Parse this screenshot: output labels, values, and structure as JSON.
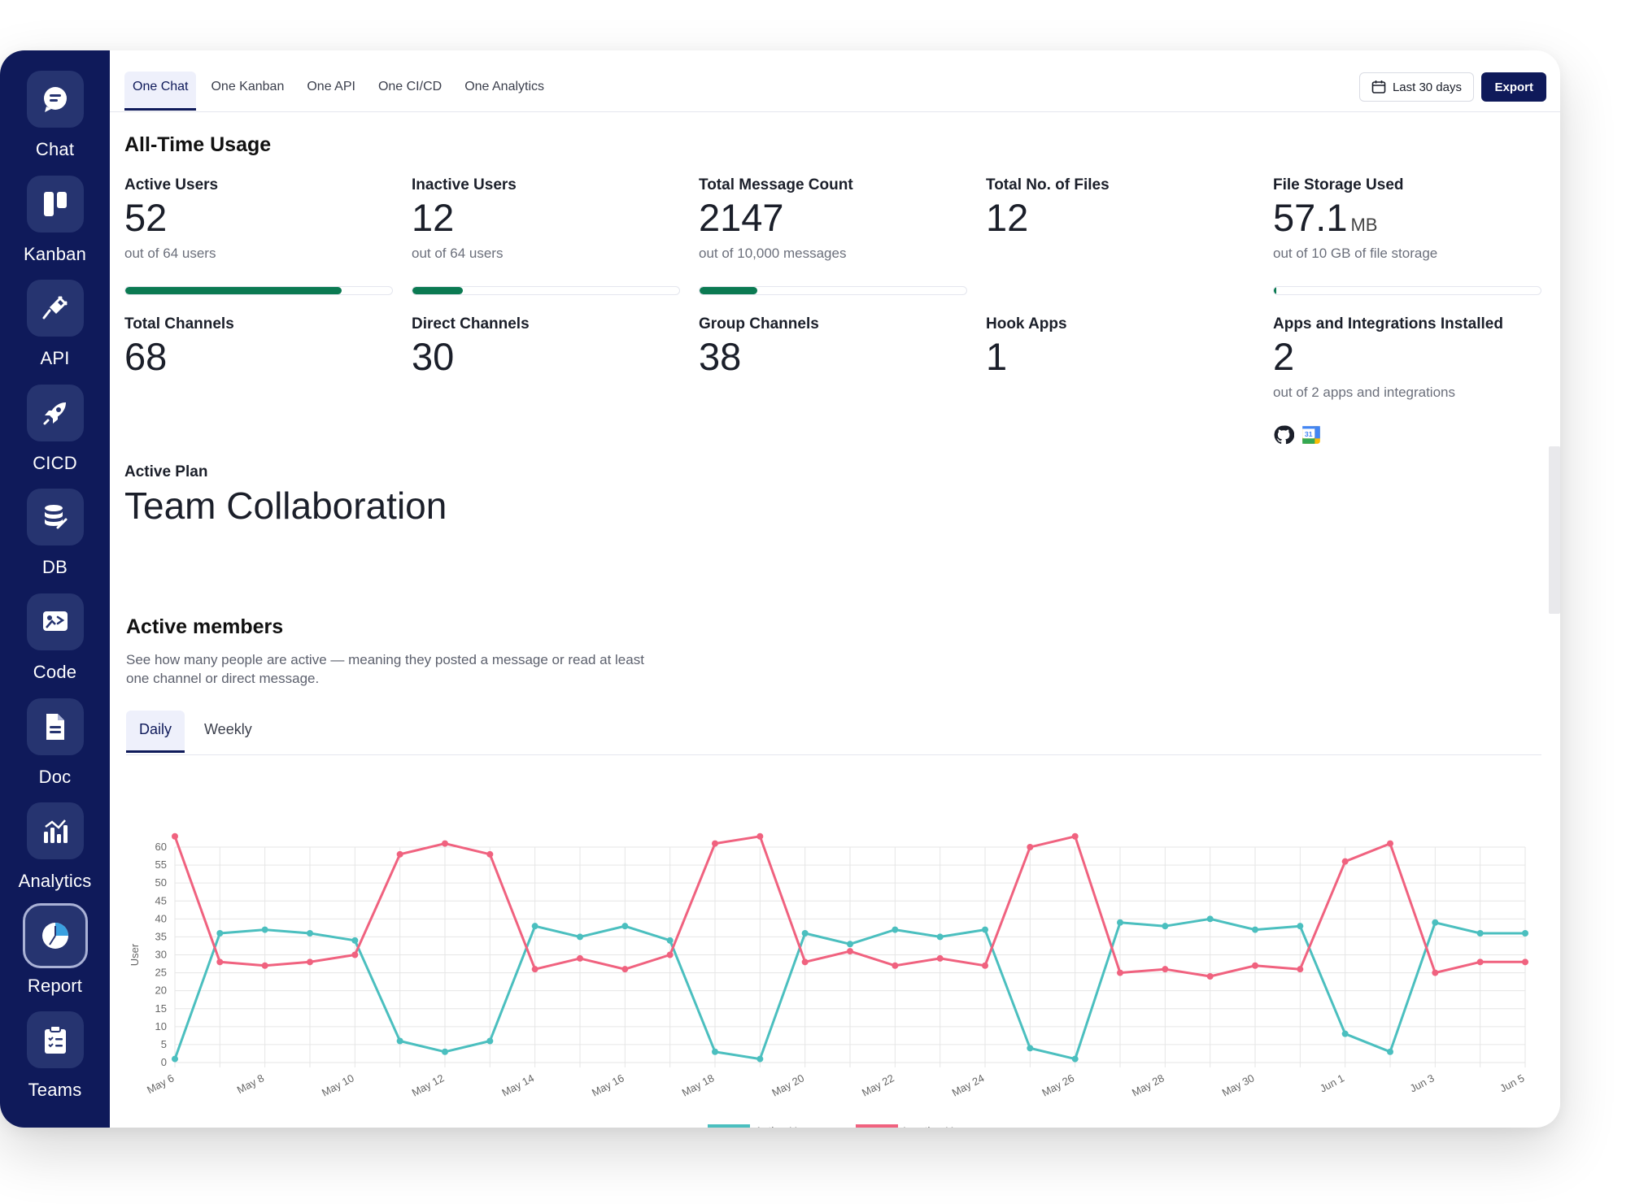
{
  "sidebar": {
    "items": [
      {
        "label": "Chat",
        "icon": "chat-icon"
      },
      {
        "label": "Kanban",
        "icon": "kanban-icon"
      },
      {
        "label": "API",
        "icon": "api-plug-icon"
      },
      {
        "label": "CICD",
        "icon": "rocket-icon"
      },
      {
        "label": "DB",
        "icon": "database-icon"
      },
      {
        "label": "Code",
        "icon": "code-icon"
      },
      {
        "label": "Doc",
        "icon": "document-icon"
      },
      {
        "label": "Analytics",
        "icon": "analytics-icon"
      },
      {
        "label": "Report",
        "icon": "pie-chart-icon",
        "active": true
      },
      {
        "label": "Teams",
        "icon": "clipboard-icon"
      }
    ]
  },
  "topbar": {
    "tabs": [
      "One Chat",
      "One Kanban",
      "One API",
      "One CI/CD",
      "One Analytics"
    ],
    "active_tab": "One Chat",
    "date_range": "Last 30 days",
    "export_label": "Export"
  },
  "usage": {
    "title": "All-Time Usage",
    "stats": [
      {
        "label": "Active Users",
        "value": "52",
        "sub": "out of 64 users",
        "progress": 0.81
      },
      {
        "label": "Inactive Users",
        "value": "12",
        "sub": "out of 64 users",
        "progress": 0.19
      },
      {
        "label": "Total Message Count",
        "value": "2147",
        "sub": "out of 10,000 messages",
        "progress": 0.215
      },
      {
        "label": "Total No. of Files",
        "value": "12"
      },
      {
        "label": "File Storage Used",
        "value": "57.1",
        "unit": "MB",
        "sub": "out of 10 GB of file storage",
        "progress": 0.006
      },
      {
        "label": "Total Channels",
        "value": "68"
      },
      {
        "label": "Direct Channels",
        "value": "30"
      },
      {
        "label": "Group Channels",
        "value": "38"
      },
      {
        "label": "Hook Apps",
        "value": "1"
      },
      {
        "label": "Apps and Integrations Installed",
        "value": "2",
        "sub": "out of 2 apps and integrations"
      }
    ],
    "installed_apps": [
      "github-icon",
      "google-calendar-icon"
    ],
    "calendar_icon_text": "31",
    "plan_label": "Active Plan",
    "plan_value": "Team Collaboration"
  },
  "members": {
    "title": "Active members",
    "description": "See how many people are active — meaning they posted a message or read at least one channel or direct message.",
    "tabs": [
      "Daily",
      "Weekly"
    ],
    "active_tab": "Daily"
  },
  "colors": {
    "sidebar_bg": "#0f1a5a",
    "accent": "#0f1a5a",
    "progress": "#0b7a52",
    "active_series": "#4bbfbf",
    "inactive_series": "#f0627f"
  },
  "chart_data": {
    "type": "line",
    "ylabel": "User",
    "xlabel": "",
    "ylim": [
      0,
      60
    ],
    "yticks": [
      0,
      5,
      10,
      15,
      20,
      25,
      30,
      35,
      40,
      45,
      50,
      55,
      60
    ],
    "x": [
      "May 6",
      "May 7",
      "May 8",
      "May 9",
      "May 10",
      "May 11",
      "May 12",
      "May 13",
      "May 14",
      "May 15",
      "May 16",
      "May 17",
      "May 18",
      "May 19",
      "May 20",
      "May 21",
      "May 22",
      "May 23",
      "May 24",
      "May 25",
      "May 26",
      "May 27",
      "May 28",
      "May 29",
      "May 30",
      "May 31",
      "Jun 1",
      "Jun 2",
      "Jun 3",
      "Jun 4",
      "Jun 5"
    ],
    "x_tick_labels": [
      "May 6",
      "May 8",
      "May 10",
      "May 12",
      "May 14",
      "May 16",
      "May 18",
      "May 20",
      "May 22",
      "May 24",
      "May 26",
      "May 28",
      "May 30",
      "Jun 1",
      "Jun 3",
      "Jun 5"
    ],
    "grid": true,
    "legend": "bottom",
    "series": [
      {
        "name": "Active Users",
        "color": "#4bbfbf",
        "values": [
          1,
          36,
          37,
          36,
          34,
          6,
          3,
          6,
          38,
          35,
          38,
          34,
          3,
          1,
          36,
          33,
          37,
          35,
          37,
          4,
          1,
          39,
          38,
          40,
          37,
          38,
          8,
          3,
          39,
          36,
          36
        ]
      },
      {
        "name": "Inactive Users",
        "color": "#f0627f",
        "values": [
          63,
          28,
          27,
          28,
          30,
          58,
          61,
          58,
          26,
          29,
          26,
          30,
          61,
          63,
          28,
          31,
          27,
          29,
          27,
          60,
          63,
          25,
          26,
          24,
          27,
          26,
          56,
          61,
          25,
          28,
          28
        ]
      }
    ]
  }
}
